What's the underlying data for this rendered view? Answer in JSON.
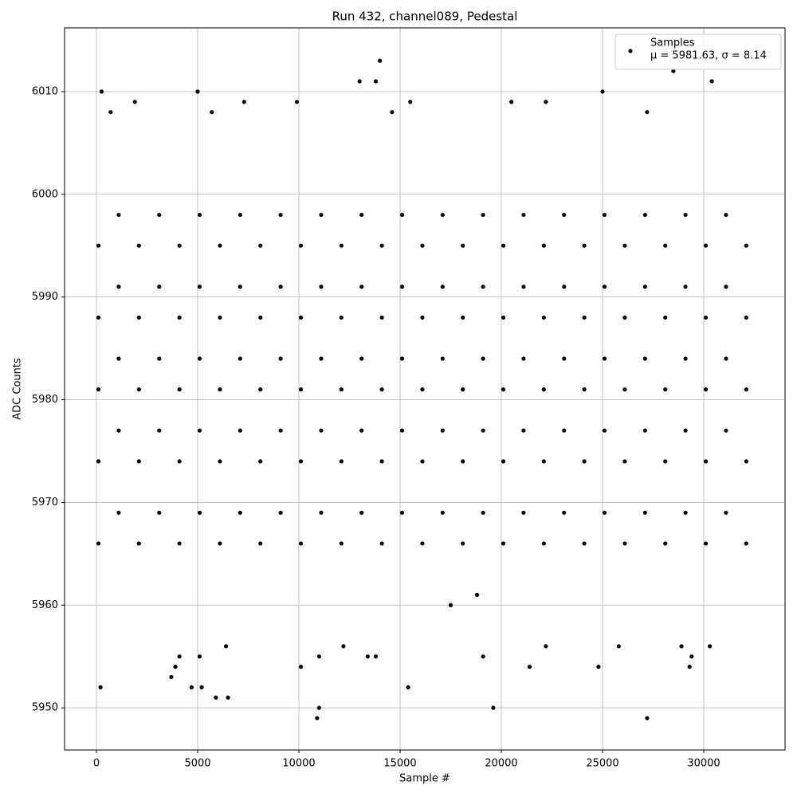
{
  "chart_data": {
    "type": "scatter",
    "title": "Run 432, channel089, Pedestal",
    "x_label": "Sample #",
    "y_label": "ADC Counts",
    "legend_subtitle": "μ = 5981.63, σ = 8.14",
    "legend": "upper right",
    "grid": true,
    "xlim": [
      -1575,
      34016
    ],
    "ylim": [
      5945.9,
      6016.2
    ],
    "xticks": [
      0,
      5000,
      10000,
      15000,
      20000,
      25000,
      30000
    ],
    "yticks": [
      5950,
      5960,
      5970,
      5980,
      5990,
      6000,
      6010
    ],
    "series": [
      {
        "name": "Samples",
        "color": "#000000",
        "x": [
          200,
          250,
          700,
          1900,
          5000,
          5700,
          7300,
          9900,
          13000,
          13800,
          14000,
          14600,
          15500,
          20500,
          22200,
          25000,
          27200,
          30400,
          28500,
          3700,
          3900,
          4700,
          5200,
          5900,
          6500,
          10100,
          10900,
          11000,
          15400,
          19600,
          21400,
          24800,
          27200,
          29300,
          29400,
          28900,
          30300,
          19100,
          13400,
          13800,
          11000,
          5100,
          4100,
          6400,
          12200,
          22200,
          25800,
          17500,
          18800,
          100,
          100,
          100,
          100,
          100,
          1100,
          1100,
          1100,
          1100,
          1100,
          2100,
          2100,
          2100,
          2100,
          2100,
          3100,
          3100,
          3100,
          3100,
          3100,
          4100,
          4100,
          4100,
          4100,
          4100,
          5100,
          5100,
          5100,
          5100,
          5100,
          6100,
          6100,
          6100,
          6100,
          6100,
          7100,
          7100,
          7100,
          7100,
          7100,
          8100,
          8100,
          8100,
          8100,
          8100,
          9100,
          9100,
          9100,
          9100,
          9100,
          10100,
          10100,
          10100,
          10100,
          10100,
          11100,
          11100,
          11100,
          11100,
          11100,
          12100,
          12100,
          12100,
          12100,
          12100,
          13100,
          13100,
          13100,
          13100,
          13100,
          14100,
          14100,
          14100,
          14100,
          14100,
          15100,
          15100,
          15100,
          15100,
          15100,
          16100,
          16100,
          16100,
          16100,
          16100,
          17100,
          17100,
          17100,
          17100,
          17100,
          18100,
          18100,
          18100,
          18100,
          18100,
          19100,
          19100,
          19100,
          19100,
          19100,
          20100,
          20100,
          20100,
          20100,
          20100,
          21100,
          21100,
          21100,
          21100,
          21100,
          22100,
          22100,
          22100,
          22100,
          22100,
          23100,
          23100,
          23100,
          23100,
          23100,
          24100,
          24100,
          24100,
          24100,
          24100,
          25100,
          25100,
          25100,
          25100,
          25100,
          26100,
          26100,
          26100,
          26100,
          26100,
          27100,
          27100,
          27100,
          27100,
          27100,
          28100,
          28100,
          28100,
          28100,
          28100,
          29100,
          29100,
          29100,
          29100,
          29100,
          30100,
          30100,
          30100,
          30100,
          30100,
          31100,
          31100,
          31100,
          31100,
          31100,
          32100,
          32100,
          32100,
          32100,
          32100
        ],
        "values": [
          5952,
          6010,
          6008,
          6009,
          6010,
          6008,
          6009,
          6009,
          6011,
          6011,
          6013,
          6008,
          6009,
          6009,
          6009,
          6010,
          6008,
          6011,
          6012,
          5953,
          5954,
          5952,
          5952,
          5951,
          5951,
          5954,
          5949,
          5950,
          5952,
          5950,
          5954,
          5954,
          5949,
          5954,
          5955,
          5956,
          5956,
          5955,
          5955,
          5955,
          5955,
          5955,
          5955,
          5956,
          5956,
          5956,
          5956,
          5960,
          5961,
          5966,
          5974,
          5981,
          5988,
          5995,
          5969,
          5977,
          5984,
          5991,
          5998,
          5966,
          5974,
          5981,
          5988,
          5995,
          5969,
          5977,
          5984,
          5991,
          5998,
          5966,
          5974,
          5981,
          5988,
          5995,
          5969,
          5977,
          5984,
          5991,
          5998,
          5966,
          5974,
          5981,
          5988,
          5995,
          5969,
          5977,
          5984,
          5991,
          5998,
          5966,
          5974,
          5981,
          5988,
          5995,
          5969,
          5977,
          5984,
          5991,
          5998,
          5966,
          5974,
          5981,
          5988,
          5995,
          5969,
          5977,
          5984,
          5991,
          5998,
          5966,
          5974,
          5981,
          5988,
          5995,
          5969,
          5977,
          5984,
          5991,
          5998,
          5966,
          5974,
          5981,
          5988,
          5995,
          5969,
          5977,
          5984,
          5991,
          5998,
          5966,
          5974,
          5981,
          5988,
          5995,
          5969,
          5977,
          5984,
          5991,
          5998,
          5966,
          5974,
          5981,
          5988,
          5995,
          5969,
          5977,
          5984,
          5991,
          5998,
          5966,
          5974,
          5981,
          5988,
          5995,
          5969,
          5977,
          5984,
          5991,
          5998,
          5966,
          5974,
          5981,
          5988,
          5995,
          5969,
          5977,
          5984,
          5991,
          5998,
          5966,
          5974,
          5981,
          5988,
          5995,
          5969,
          5977,
          5984,
          5991,
          5998,
          5966,
          5974,
          5981,
          5988,
          5995,
          5969,
          5977,
          5984,
          5991,
          5998,
          5966,
          5974,
          5981,
          5988,
          5995,
          5969,
          5977,
          5984,
          5991,
          5998,
          5966,
          5974,
          5981,
          5988,
          5995,
          5969,
          5977,
          5984,
          5991,
          5998,
          5966,
          5974,
          5981,
          5988,
          5995
        ]
      }
    ]
  }
}
